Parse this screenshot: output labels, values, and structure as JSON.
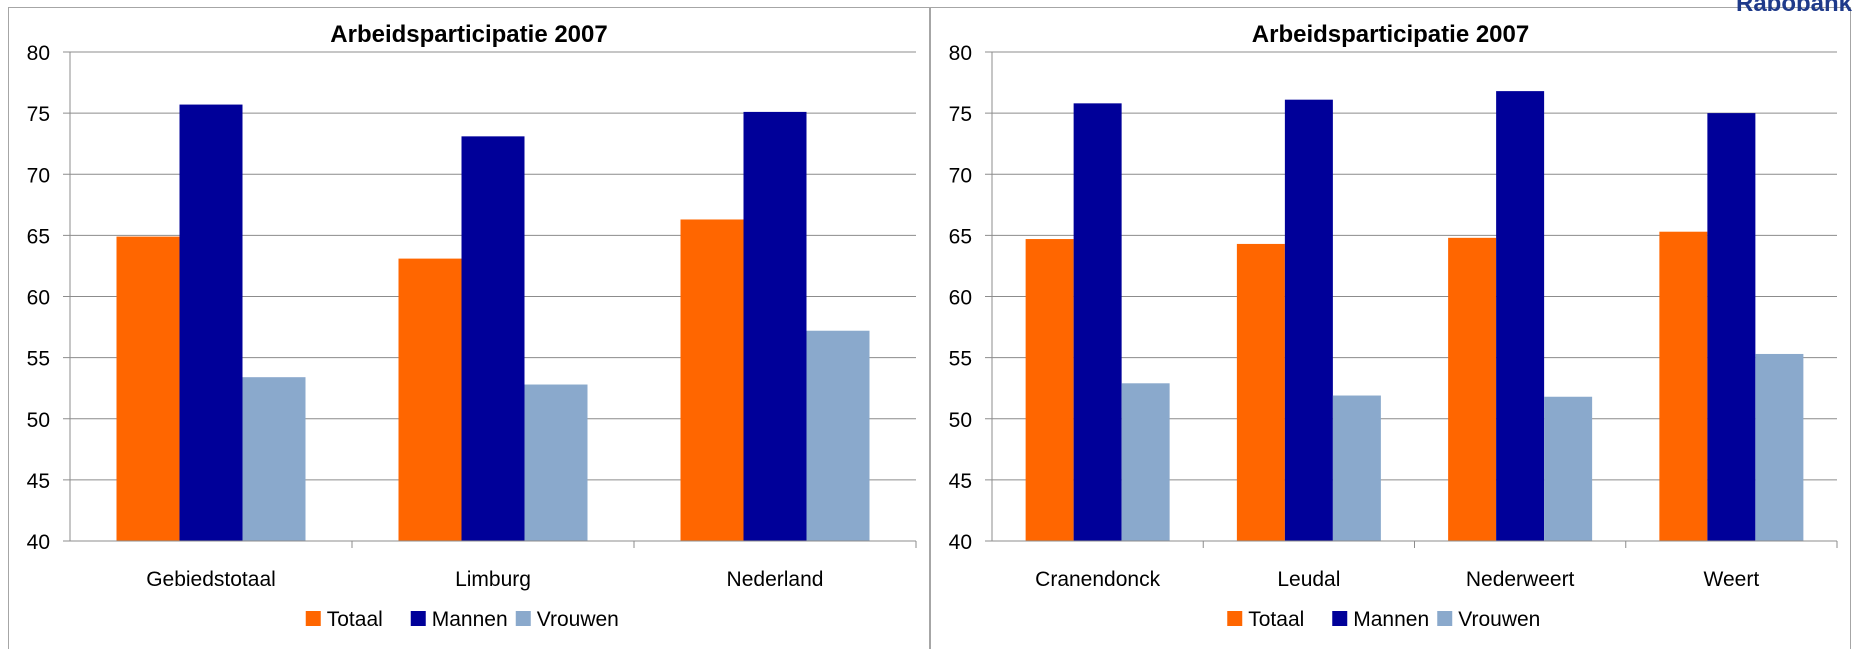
{
  "brand": {
    "text": "Rabobank"
  },
  "legend_colors": {
    "Totaal": "#ff6600",
    "Mannen": "#000099",
    "Vrouwen": "#8aa9cc"
  },
  "chart_data": [
    {
      "type": "bar",
      "title": "Arbeidsparticipatie 2007",
      "categories": [
        "Gebiedstotaal",
        "Limburg",
        "Nederland"
      ],
      "series": [
        {
          "name": "Totaal",
          "values": [
            64.9,
            63.1,
            66.3
          ]
        },
        {
          "name": "Mannen",
          "values": [
            75.7,
            73.1,
            75.1
          ]
        },
        {
          "name": "Vrouwen",
          "values": [
            53.4,
            52.8,
            57.2
          ]
        }
      ],
      "ylim": [
        40,
        80
      ],
      "yticks": [
        40,
        45,
        50,
        55,
        60,
        65,
        70,
        75,
        80
      ],
      "grid": true,
      "legend_position": "bottom"
    },
    {
      "type": "bar",
      "title": "Arbeidsparticipatie 2007",
      "categories": [
        "Cranendonck",
        "Leudal",
        "Nederweert",
        "Weert"
      ],
      "series": [
        {
          "name": "Totaal",
          "values": [
            64.7,
            64.3,
            64.8,
            65.3
          ]
        },
        {
          "name": "Mannen",
          "values": [
            75.8,
            76.1,
            76.8,
            75.0
          ]
        },
        {
          "name": "Vrouwen",
          "values": [
            52.9,
            51.9,
            51.8,
            55.3
          ]
        }
      ],
      "ylim": [
        40,
        80
      ],
      "yticks": [
        40,
        45,
        50,
        55,
        60,
        65,
        70,
        75,
        80
      ],
      "grid": true,
      "legend_position": "bottom"
    }
  ]
}
